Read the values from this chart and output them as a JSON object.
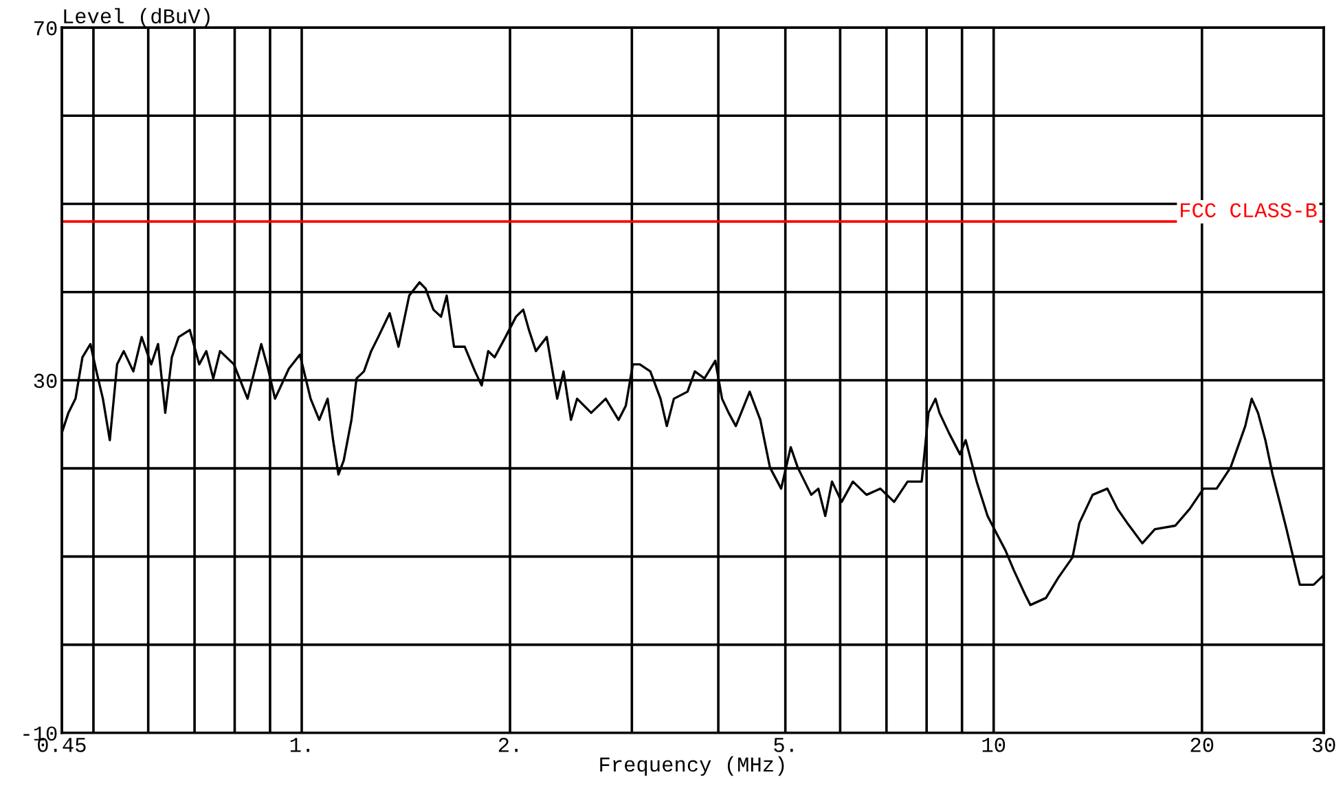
{
  "chart_data": {
    "type": "line",
    "xlabel": "Frequency (MHz)",
    "ylabel": "Level (dBuV)",
    "log": "x",
    "grid": true,
    "marker": "none",
    "line_style": "solid",
    "xlim": [
      0.45,
      30
    ],
    "ylim": [
      -10,
      70
    ],
    "xticks": [
      {
        "value": 0.45,
        "label": "0.45"
      },
      {
        "value": 0.5,
        "label": null
      },
      {
        "value": 0.6,
        "label": null
      },
      {
        "value": 0.7,
        "label": null
      },
      {
        "value": 0.8,
        "label": null
      },
      {
        "value": 0.9,
        "label": null
      },
      {
        "value": 1,
        "label": "1."
      },
      {
        "value": 2,
        "label": "2."
      },
      {
        "value": 3,
        "label": null
      },
      {
        "value": 4,
        "label": null
      },
      {
        "value": 5,
        "label": "5."
      },
      {
        "value": 6,
        "label": null
      },
      {
        "value": 7,
        "label": null
      },
      {
        "value": 8,
        "label": null
      },
      {
        "value": 9,
        "label": null
      },
      10,
      20,
      30
    ],
    "yticks": [
      -10,
      {
        "value": 0,
        "label": null
      },
      {
        "value": 10,
        "label": null
      },
      {
        "value": 20,
        "label": null
      },
      30,
      {
        "value": 40,
        "label": null
      },
      {
        "value": 50,
        "label": null
      },
      {
        "value": 60,
        "label": null
      },
      70
    ],
    "ref_lines": [
      {
        "axis": "y",
        "value": 48,
        "label": "FCC CLASS-B",
        "color": "#ff0000"
      }
    ],
    "series": [
      {
        "color": "#000000",
        "x": [
          0.45,
          0.46,
          0.471,
          0.482,
          0.495,
          0.505,
          0.516,
          0.528,
          0.541,
          0.553,
          0.571,
          0.587,
          0.606,
          0.62,
          0.635,
          0.649,
          0.664,
          0.689,
          0.711,
          0.728,
          0.745,
          0.762,
          0.798,
          0.835,
          0.874,
          0.894,
          0.915,
          0.958,
          0.994,
          1.03,
          1.06,
          1.09,
          1.11,
          1.13,
          1.15,
          1.18,
          1.2,
          1.23,
          1.26,
          1.29,
          1.34,
          1.38,
          1.43,
          1.48,
          1.51,
          1.55,
          1.59,
          1.62,
          1.66,
          1.72,
          1.78,
          1.82,
          1.86,
          1.9,
          1.97,
          2.04,
          2.09,
          2.13,
          2.18,
          2.26,
          2.34,
          2.39,
          2.45,
          2.5,
          2.62,
          2.75,
          2.87,
          2.94,
          3.01,
          3.08,
          3.19,
          3.3,
          3.37,
          3.45,
          3.61,
          3.7,
          3.82,
          3.96,
          4.05,
          4.14,
          4.24,
          4.44,
          4.6,
          4.75,
          4.93,
          5.09,
          5.21,
          5.45,
          5.58,
          5.71,
          5.84,
          6.03,
          6.26,
          6.55,
          6.86,
          7.18,
          7.51,
          7.87,
          8.05,
          8.24,
          8.35,
          8.62,
          8.94,
          9.11,
          9.45,
          9.8,
          10.1,
          10.4,
          10.7,
          11.1,
          11.3,
          11.9,
          12.4,
          13.0,
          13.3,
          13.9,
          14.6,
          15.1,
          15.6,
          16.4,
          17.1,
          18.3,
          19.2,
          20.1,
          21.0,
          22.0,
          23.1,
          23.6,
          24.1,
          24.7,
          25.3,
          25.9,
          26.5,
          27.1,
          27.7,
          29.0,
          30.0
        ],
        "values": [
          24.0,
          26.3,
          27.9,
          32.6,
          34.1,
          31.0,
          27.9,
          23.2,
          31.8,
          33.3,
          31.0,
          34.9,
          31.8,
          34.1,
          26.3,
          32.6,
          34.9,
          35.7,
          31.8,
          33.3,
          30.2,
          33.3,
          31.8,
          27.9,
          34.1,
          31.3,
          27.9,
          31.3,
          32.9,
          27.9,
          25.5,
          27.9,
          23.2,
          19.3,
          20.9,
          25.5,
          30.2,
          31.0,
          33.3,
          34.9,
          37.6,
          33.8,
          39.6,
          41.1,
          40.4,
          38.0,
          37.2,
          39.6,
          33.8,
          33.8,
          31.0,
          29.4,
          33.3,
          32.6,
          34.9,
          37.2,
          38.0,
          35.7,
          33.3,
          34.9,
          27.9,
          31.0,
          25.5,
          27.9,
          26.3,
          27.9,
          25.5,
          27.1,
          31.8,
          31.8,
          31.0,
          27.9,
          24.8,
          27.9,
          28.7,
          31.0,
          30.2,
          32.2,
          27.9,
          26.3,
          24.8,
          28.7,
          25.5,
          20.1,
          17.7,
          22.4,
          20.1,
          17.0,
          17.7,
          14.6,
          18.5,
          16.2,
          18.5,
          17.0,
          17.7,
          16.2,
          18.5,
          18.5,
          26.3,
          27.9,
          26.3,
          24.0,
          21.6,
          23.2,
          18.5,
          14.6,
          12.6,
          10.7,
          8.4,
          5.7,
          4.5,
          5.3,
          7.6,
          9.9,
          13.8,
          17.0,
          17.7,
          15.4,
          13.8,
          11.5,
          13.1,
          13.5,
          15.4,
          17.7,
          17.7,
          20.1,
          24.8,
          27.9,
          26.3,
          23.2,
          19.3,
          16.2,
          13.1,
          9.9,
          6.8,
          6.8,
          7.9
        ]
      }
    ]
  }
}
